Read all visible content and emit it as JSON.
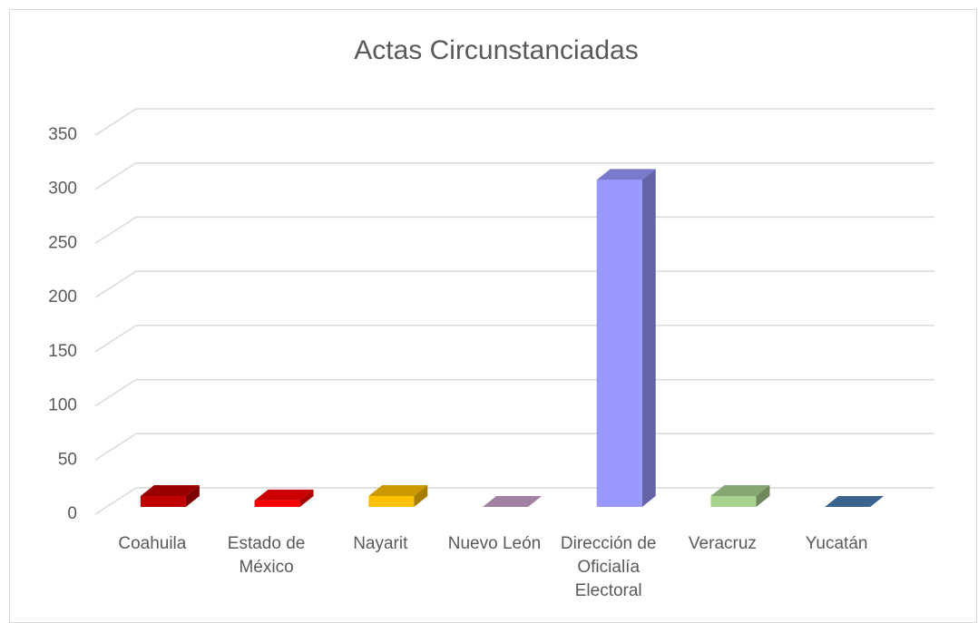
{
  "chart_data": {
    "type": "bar3d",
    "title": "Actas Circunstanciadas",
    "categories": [
      "Coahuila",
      "Estado de México",
      "Nayarit",
      "Nuevo León",
      "Dirección de Oficialía Electoral",
      "Veracruz",
      "Yucatán"
    ],
    "values": [
      10,
      6,
      10,
      0,
      302,
      10,
      0
    ],
    "colors": [
      "#c00000",
      "#ff0000",
      "#ffc000",
      "#c9a0cb",
      "#9999ff",
      "#a9d18e",
      "#4a7db3"
    ],
    "ylim": [
      0,
      350
    ],
    "yticks": [
      0,
      50,
      100,
      150,
      200,
      250,
      300,
      350
    ],
    "grid": true
  }
}
